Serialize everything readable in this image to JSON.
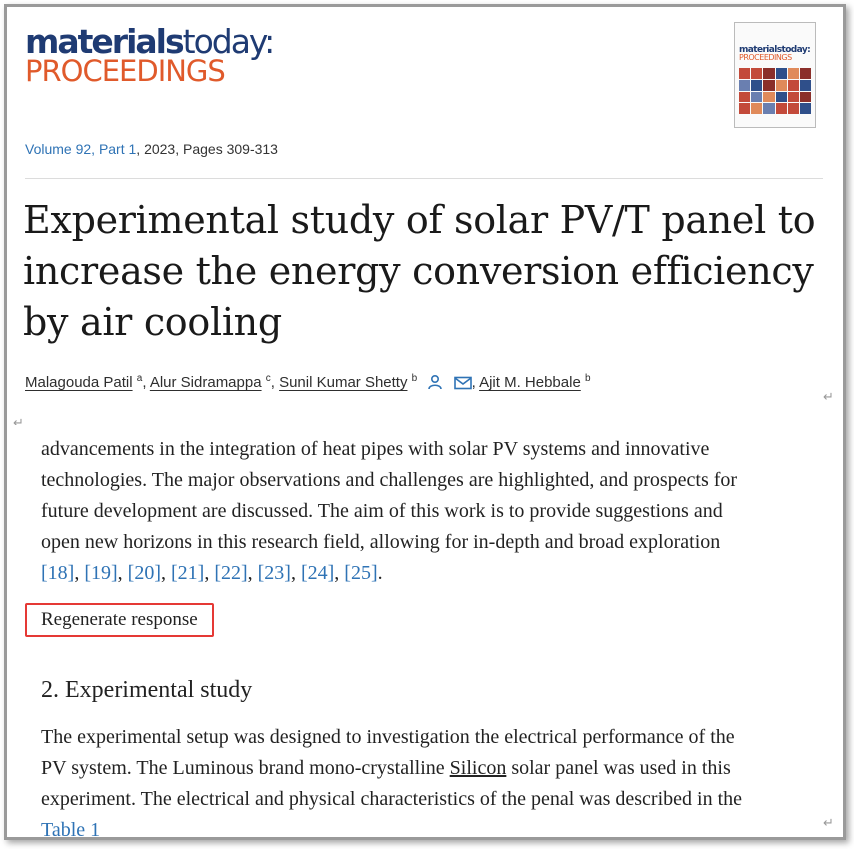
{
  "logo": {
    "line1_bold": "materials",
    "line1_light": "today",
    "line1_colon": ":",
    "line2": "PROCEEDINGS"
  },
  "cover": {
    "line1": "materialstoday:",
    "line2": "PROCEEDINGS"
  },
  "volume": {
    "link": "Volume 92, Part 1",
    "rest": ", 2023, Pages 309-313"
  },
  "title": "Experimental study of solar PV/T panel to increase the energy conversion efficiency by air cooling",
  "authors": [
    {
      "name": "Malagouda Patil",
      "sup": "a"
    },
    {
      "name": "Alur Sidramappa",
      "sup": "c"
    },
    {
      "name": "Sunil Kumar Shetty",
      "sup": "b"
    },
    {
      "name": "Ajit M. Hebbale",
      "sup": "b"
    }
  ],
  "body": {
    "para1_line1": "advancements in the integration of heat pipes with solar PV systems and innovative",
    "para1_line2": "technologies. The major observations and challenges are highlighted, and prospects for",
    "para1_line3": "future development are discussed. The aim of this work is to provide suggestions and",
    "para1_line4": "open new horizons in this research field, allowing for in-depth and broad exploration",
    "refs": [
      "[18]",
      "[19]",
      "[20]",
      "[21]",
      "[22]",
      "[23]",
      "[24]",
      "[25]"
    ],
    "regenerate_label": "Regenerate response",
    "section_heading": "2. Experimental study",
    "para2_line1": "The experimental setup was designed to investigation the electrical performance of the",
    "para2_line2a": "PV system. The Luminous brand mono-crystalline ",
    "para2_silicon": "Silicon",
    "para2_line2b": " solar panel was used in this",
    "para2_line3": "experiment. The electrical and physical characteristics of the penal was described in the",
    "para2_partial": "Table 1"
  },
  "colors": {
    "link": "#2f73b5",
    "logo_blue": "#1f3b73",
    "logo_orange": "#e05a2b",
    "highlight_box": "#e53935"
  }
}
